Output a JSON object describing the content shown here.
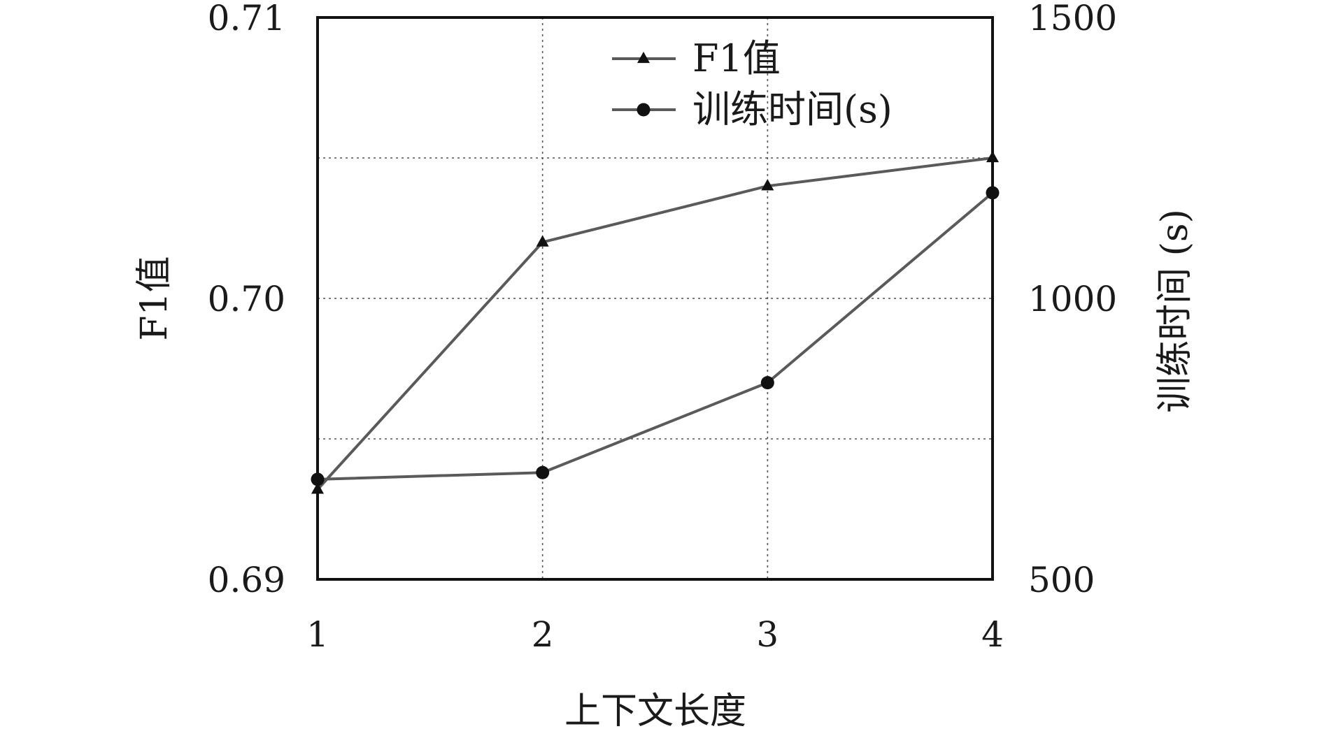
{
  "chart_data": {
    "type": "line",
    "x": [
      1,
      2,
      3,
      4
    ],
    "x_tick_labels": [
      "1",
      "2",
      "3",
      "4"
    ],
    "xlabel": "上下文长度",
    "ylabel_left": "F1值",
    "ylabel_right": "训练时间 (s)",
    "ylim_left": [
      0.69,
      0.71
    ],
    "ylim_right": [
      500,
      1500
    ],
    "y_left_tick_labels": [
      "0.69",
      "0.70",
      "0.71"
    ],
    "y_right_tick_labels": [
      "500",
      "1000",
      "1500"
    ],
    "grid": true,
    "legend_position": "top-center",
    "series": [
      {
        "name": "F1值",
        "axis": "left",
        "marker": "triangle",
        "color": "#5a5a5a",
        "values": [
          0.6932,
          0.702,
          0.704,
          0.705
        ]
      },
      {
        "name": "训练时间(s)",
        "axis": "right",
        "marker": "circle",
        "color": "#5a5a5a",
        "values": [
          678,
          690,
          850,
          1188
        ]
      }
    ]
  }
}
